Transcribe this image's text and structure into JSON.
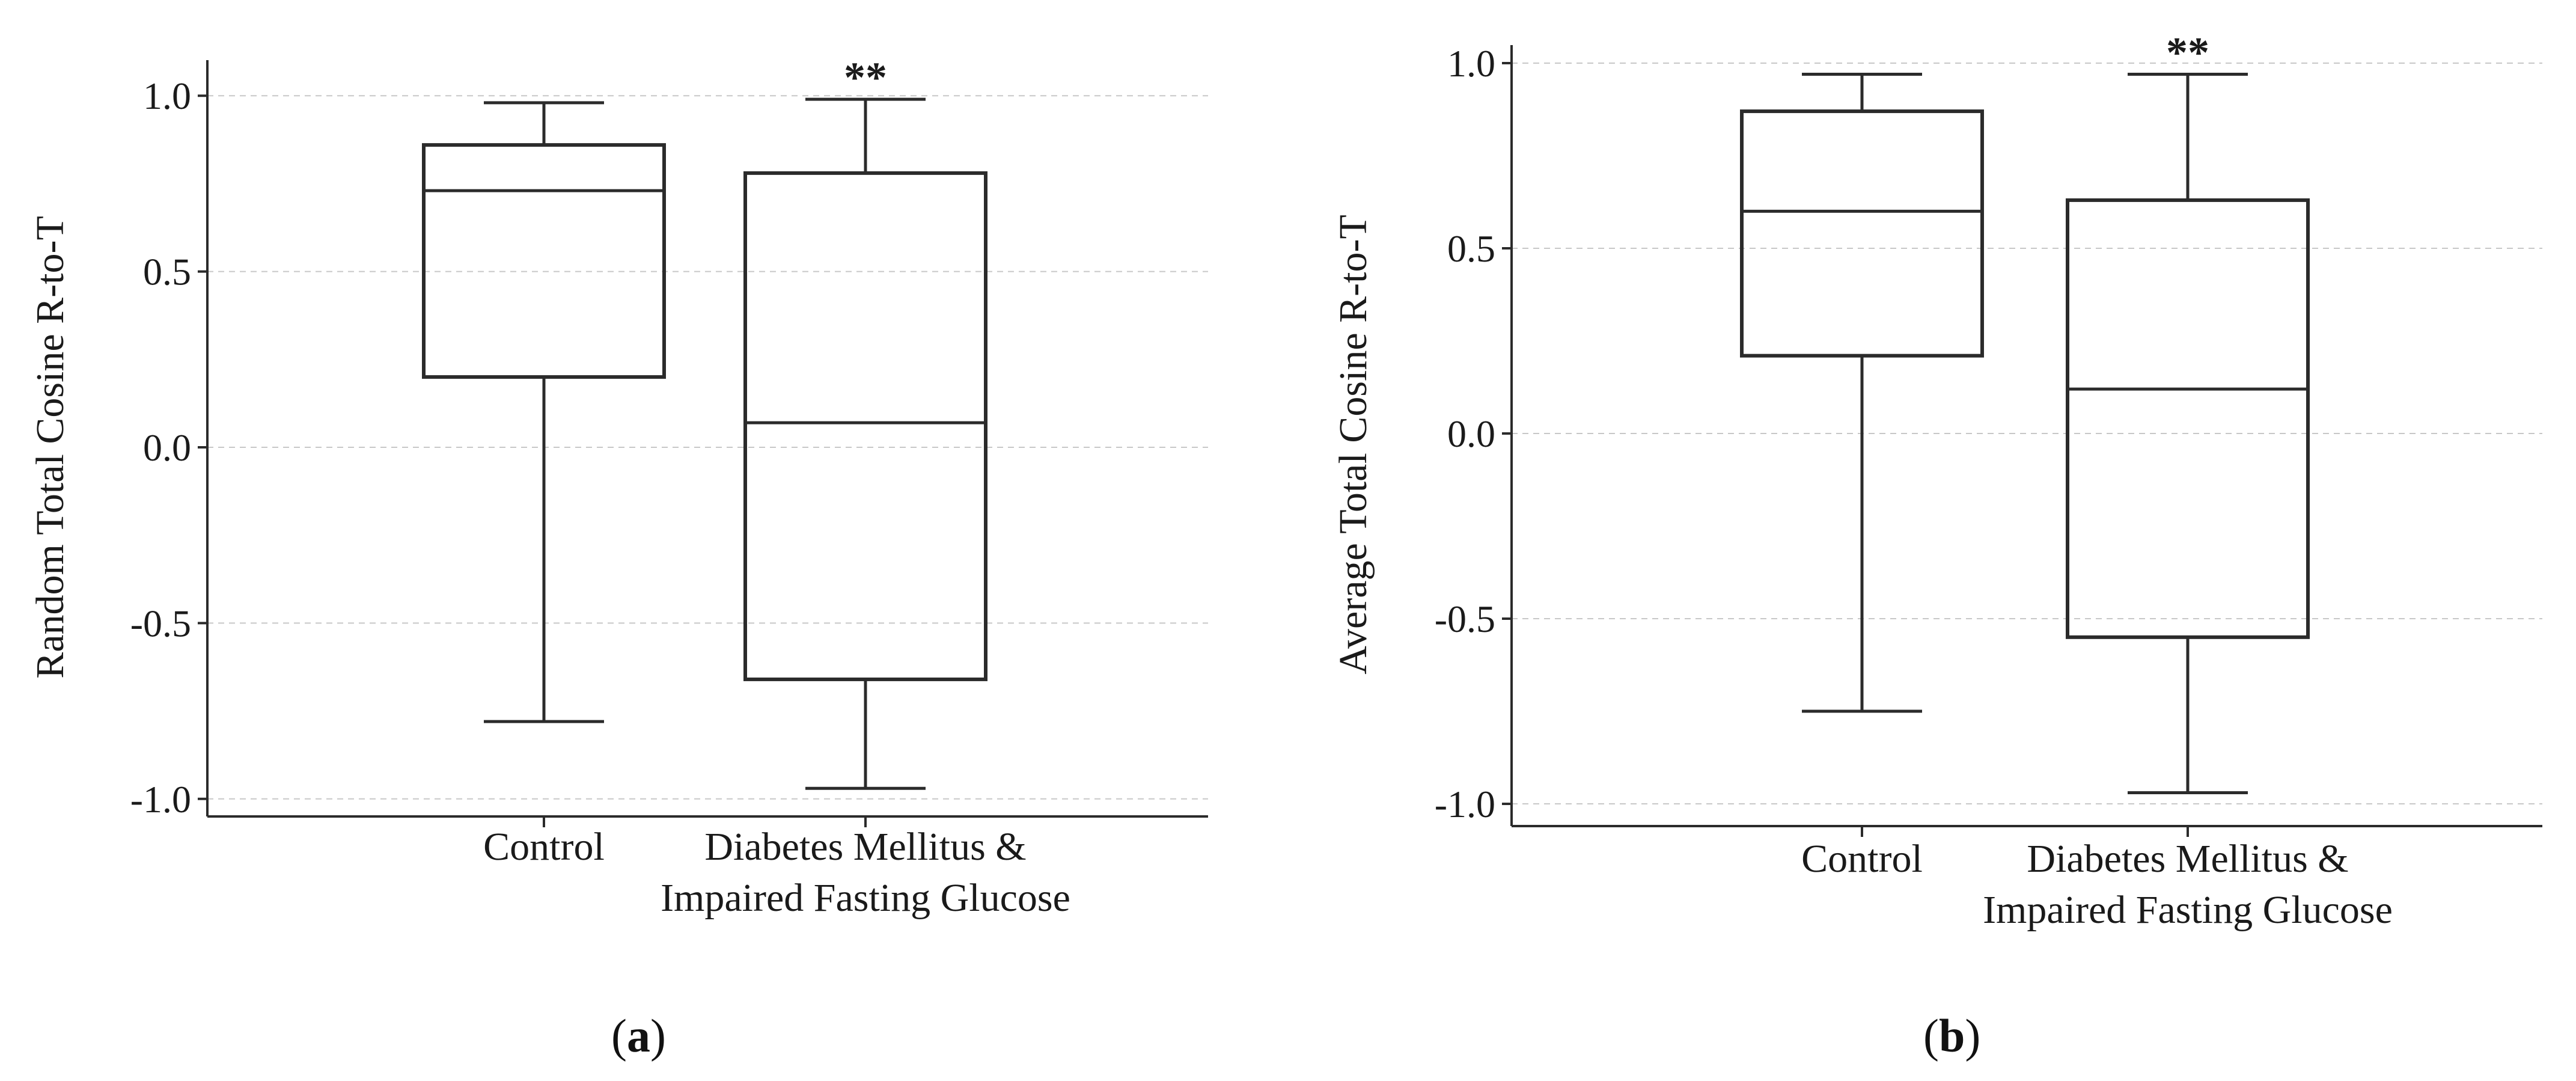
{
  "chart_data": [
    {
      "type": "box",
      "panel_label": "a",
      "ylabel": "Random Total Cosine R-to-T",
      "xlabel": "",
      "ylim": [
        -1.05,
        1.05
      ],
      "y_ticks": [
        1.0,
        0.5,
        0.0,
        -0.5,
        -1.0
      ],
      "y_tick_labels": [
        "1.0",
        "0.5",
        "0.0",
        "-0.5",
        "-1.0"
      ],
      "grid": "horizontal dashed",
      "categories": [
        {
          "label_lines": [
            "Control"
          ],
          "whisker_low": -0.78,
          "q1": 0.2,
          "median": 0.73,
          "q3": 0.86,
          "whisker_high": 0.98,
          "annotation": ""
        },
        {
          "label_lines": [
            "Diabetes Mellitus &",
            "Impaired Fasting Glucose"
          ],
          "whisker_low": -0.97,
          "q1": -0.66,
          "median": 0.07,
          "q3": 0.78,
          "whisker_high": 0.99,
          "annotation": "**"
        }
      ]
    },
    {
      "type": "box",
      "panel_label": "b",
      "ylabel": "Average Total Cosine R-to-T",
      "xlabel": "",
      "ylim": [
        -1.06,
        1.0
      ],
      "y_ticks": [
        1.0,
        0.5,
        0.0,
        -0.5,
        -1.0
      ],
      "y_tick_labels": [
        "1.0",
        "0.5",
        "0.0",
        "-0.5",
        "-1.0"
      ],
      "grid": "horizontal dashed",
      "categories": [
        {
          "label_lines": [
            "Control"
          ],
          "whisker_low": -0.75,
          "q1": 0.21,
          "median": 0.6,
          "q3": 0.87,
          "whisker_high": 0.97,
          "annotation": ""
        },
        {
          "label_lines": [
            "Diabetes Mellitus &",
            "Impaired Fasting Glucose"
          ],
          "whisker_low": -0.97,
          "q1": -0.55,
          "median": 0.12,
          "q3": 0.63,
          "whisker_high": 0.97,
          "annotation": "**"
        }
      ]
    }
  ]
}
